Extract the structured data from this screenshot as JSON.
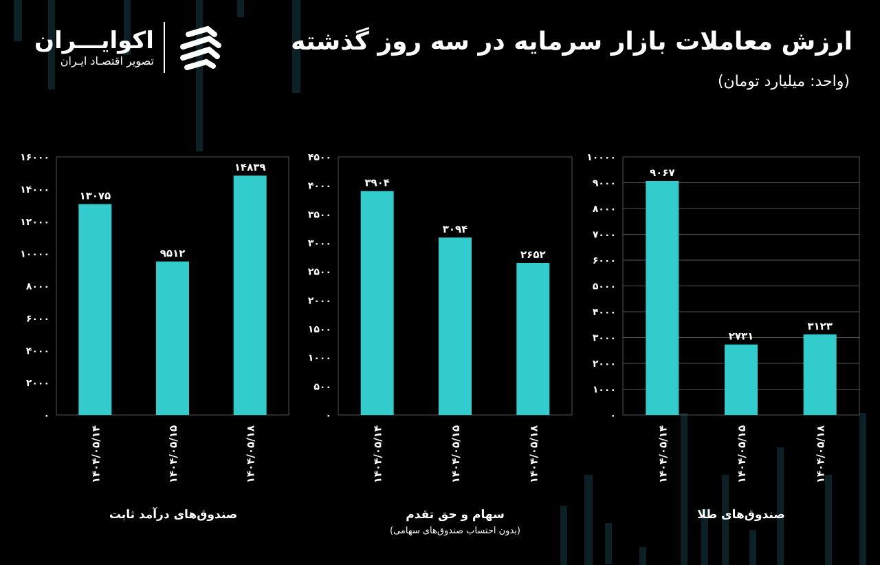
{
  "header": {
    "title": "ارزش معاملات بازار سرمایه در سه روز گذشته",
    "unit": "(واحد: میلیارد تومان)"
  },
  "logo": {
    "name": "اکوایـــران",
    "tagline": "تصویر اقتصـاد ایـران"
  },
  "colors": {
    "bar": "#33cccc",
    "background": "#000000",
    "grid": "#555555",
    "text": "#ffffff"
  },
  "chart_data": [
    {
      "type": "bar",
      "title": "صندوق‌های درآمد ثابت",
      "subtitle": "",
      "categories": [
        "۱۴۰۴/۰۵/۱۴",
        "۱۴۰۴/۰۵/۱۵",
        "۱۴۰۴/۰۵/۱۸"
      ],
      "values": [
        13075,
        9512,
        14839
      ],
      "ylim": [
        0,
        16000
      ],
      "ytick_step": 2000,
      "grid": false
    },
    {
      "type": "bar",
      "title": "سهام و حق تقدم",
      "subtitle": "(بدون احتساب صندوق‌های سهامی)",
      "categories": [
        "۱۴۰۴/۰۵/۱۴",
        "۱۴۰۴/۰۵/۱۵",
        "۱۴۰۴/۰۵/۱۸"
      ],
      "values": [
        3904,
        3094,
        2652
      ],
      "ylim": [
        0,
        4500
      ],
      "ytick_step": 500,
      "grid": false
    },
    {
      "type": "bar",
      "title": "صندوق‌های طلا",
      "subtitle": "",
      "categories": [
        "۱۴۰۴/۰۵/۱۴",
        "۱۴۰۴/۰۵/۱۵",
        "۱۴۰۴/۰۵/۱۸"
      ],
      "values": [
        9067,
        2731,
        3123
      ],
      "ylim": [
        0,
        10000
      ],
      "ytick_step": 1000,
      "grid": true
    }
  ]
}
